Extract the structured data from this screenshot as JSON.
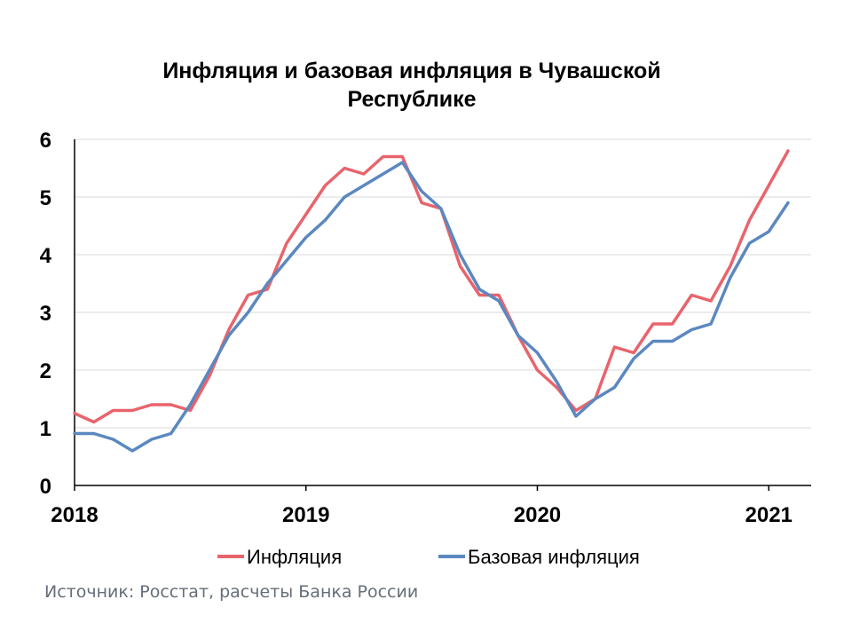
{
  "chart_data": {
    "type": "line",
    "title_lines": [
      "Инфляция и базовая инфляция в Чувашской",
      "Республике"
    ],
    "xlabel": "",
    "ylabel": "",
    "x_ticks": [
      "2018",
      "2019",
      "2020",
      "2021"
    ],
    "y_ticks": [
      "0",
      "1",
      "2",
      "3",
      "4",
      "5",
      "6"
    ],
    "ylim": [
      0,
      6
    ],
    "xlim": [
      0,
      38.2
    ],
    "grid": "horizontal",
    "legend_position": "bottom",
    "series": [
      {
        "name": "Инфляция",
        "color": "#e8646c",
        "values": [
          1.25,
          1.1,
          1.3,
          1.3,
          1.4,
          1.4,
          1.3,
          1.9,
          2.7,
          3.3,
          3.4,
          4.2,
          4.7,
          5.2,
          5.5,
          5.4,
          5.7,
          5.7,
          4.9,
          4.8,
          3.8,
          3.3,
          3.3,
          2.6,
          2.0,
          1.7,
          1.3,
          1.5,
          2.4,
          2.3,
          2.8,
          2.8,
          3.3,
          3.2,
          3.8,
          4.6,
          5.2,
          5.8
        ]
      },
      {
        "name": "Базовая инфляция",
        "color": "#5b88bf",
        "values": [
          0.9,
          0.9,
          0.8,
          0.6,
          0.8,
          0.9,
          1.4,
          2.0,
          2.6,
          3.0,
          3.5,
          3.9,
          4.3,
          4.6,
          5.0,
          5.2,
          5.4,
          5.6,
          5.1,
          4.8,
          4.0,
          3.4,
          3.2,
          2.6,
          2.3,
          1.8,
          1.2,
          1.5,
          1.7,
          2.2,
          2.5,
          2.5,
          2.7,
          2.8,
          3.6,
          4.2,
          4.4,
          4.9
        ]
      }
    ]
  },
  "source_text": "Источник: Росстат, расчеты Банка России"
}
